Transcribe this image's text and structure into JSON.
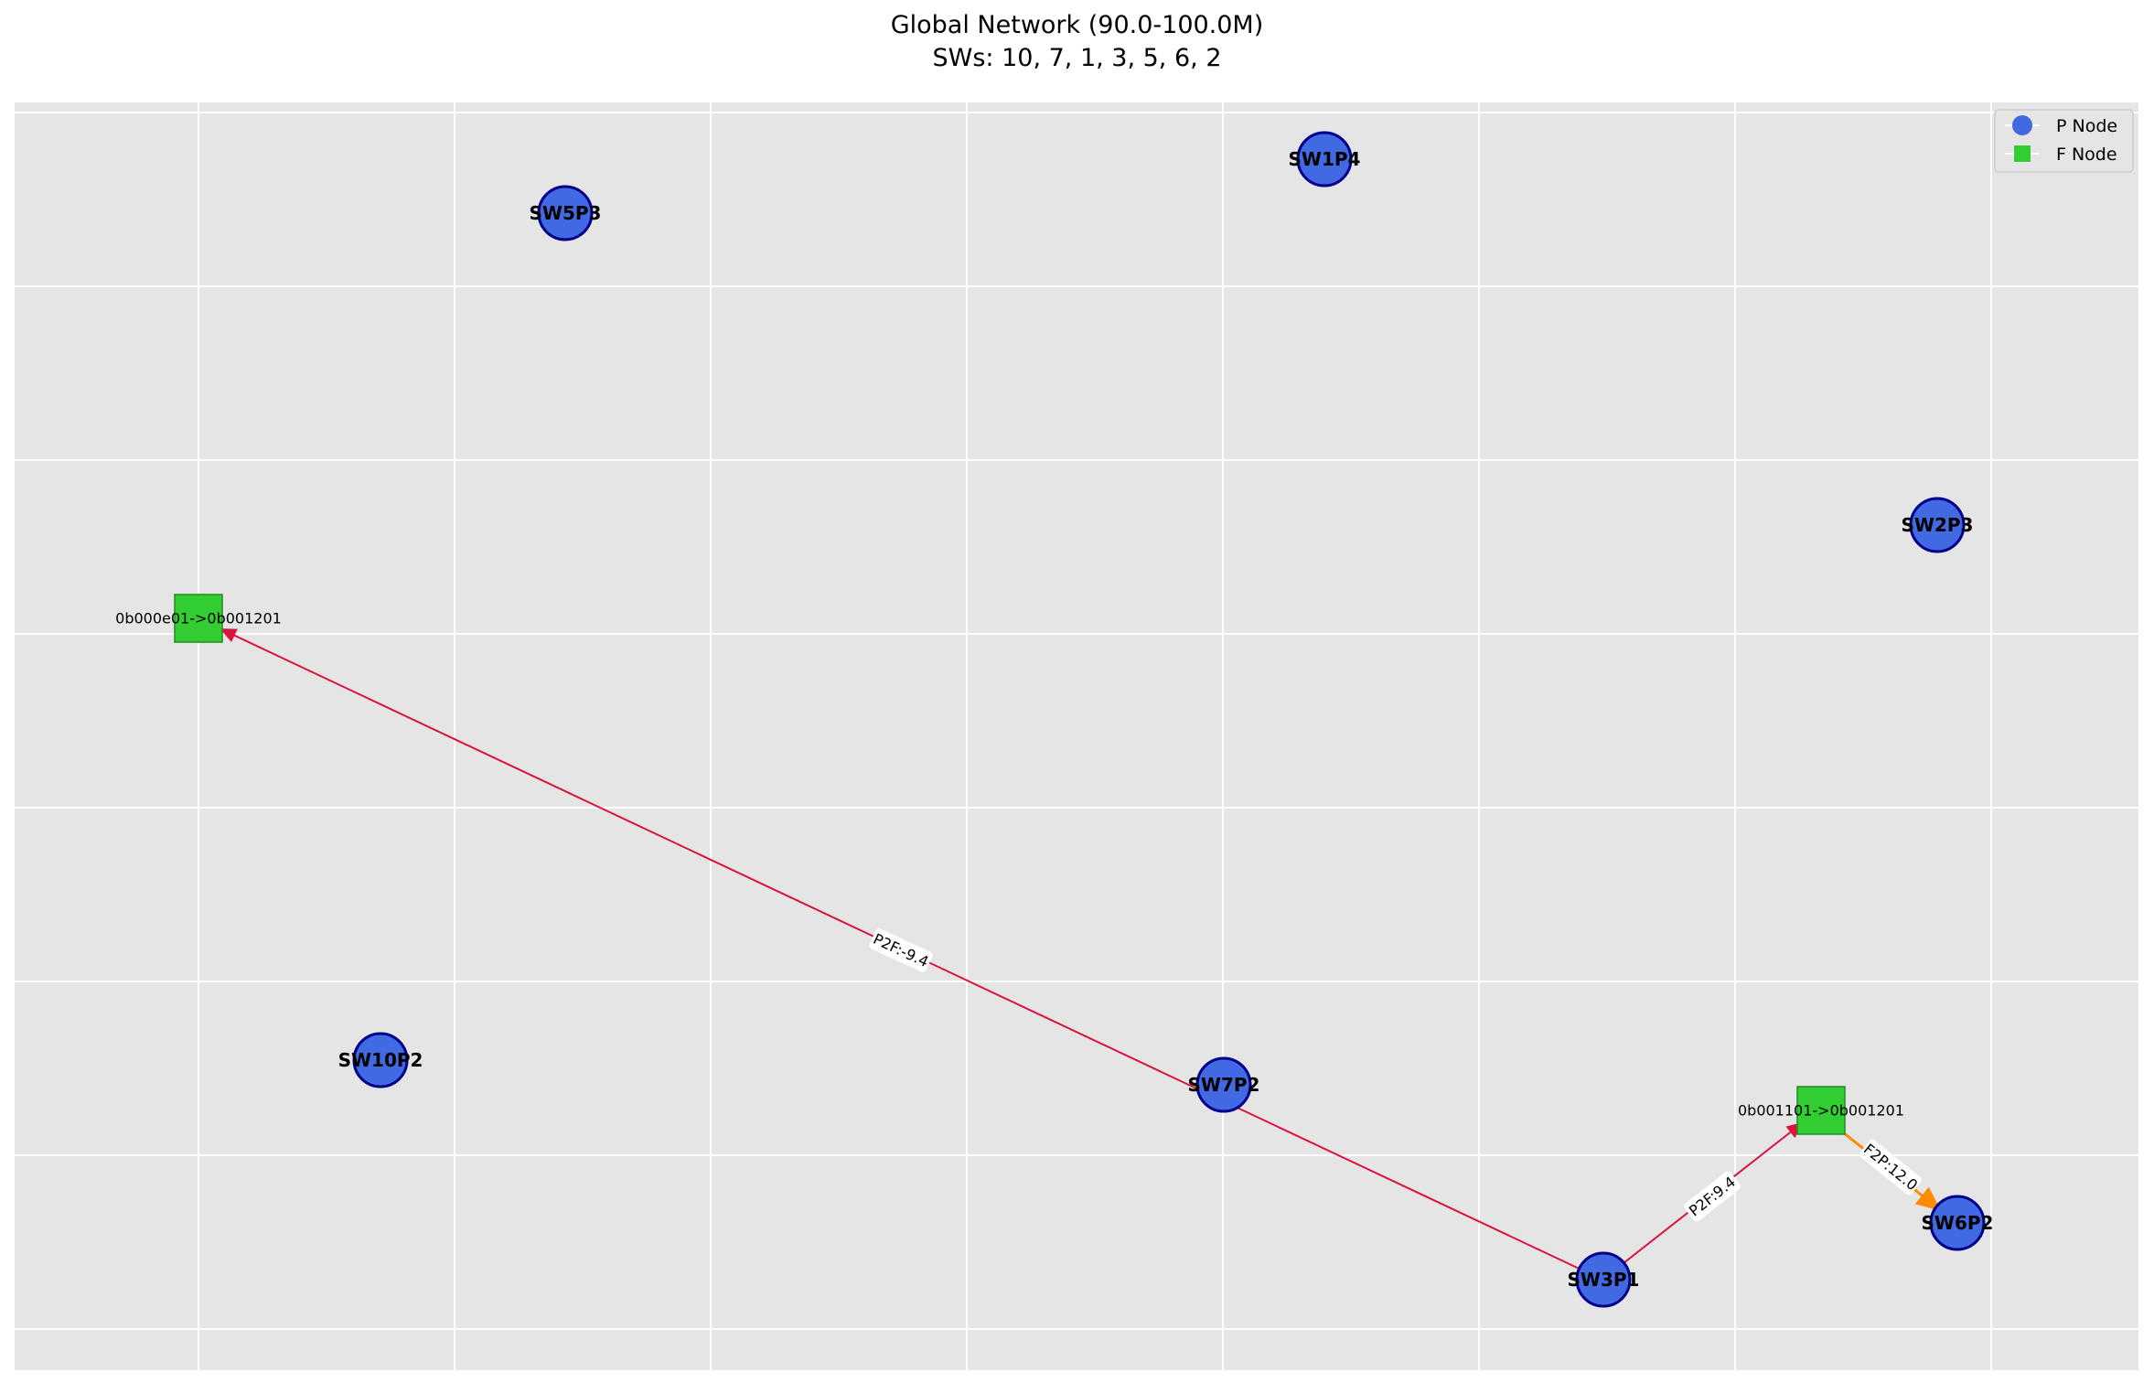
{
  "title": {
    "line1": "Global Network (90.0-100.0M)",
    "line2": "SWs: 10, 7, 1, 3, 5, 6, 2"
  },
  "legend": {
    "items": [
      {
        "label": "P Node",
        "shape": "circle",
        "color": "#4169e1"
      },
      {
        "label": "F Node",
        "shape": "square",
        "color": "#32cd32"
      }
    ]
  },
  "colors": {
    "background": "#e5e5e5",
    "grid": "#ffffff",
    "p_node_fill": "#4169e1",
    "p_node_stroke": "#00008b",
    "f_node_fill": "#32cd32",
    "f_node_stroke": "#228b22",
    "p2f_edge": "#dc143c",
    "f2p_edge": "#ff8c00"
  },
  "nodes": {
    "sw5p3": {
      "label": "SW5P3",
      "type": "P"
    },
    "sw1p4": {
      "label": "SW1P4",
      "type": "P"
    },
    "sw2p3": {
      "label": "SW2P3",
      "type": "P"
    },
    "sw10p2": {
      "label": "SW10P2",
      "type": "P"
    },
    "sw7p2": {
      "label": "SW7P2",
      "type": "P"
    },
    "sw3p1": {
      "label": "SW3P1",
      "type": "P"
    },
    "sw6p2": {
      "label": "SW6P2",
      "type": "P"
    },
    "f1": {
      "label": "0b000e01->0b001201",
      "type": "F"
    },
    "f2": {
      "label": "0b001101->0b001201",
      "type": "F"
    }
  },
  "edges": [
    {
      "from": "SW3P1",
      "to": "0b000e01->0b001201",
      "label": "P2F:-9.4",
      "kind": "P2F"
    },
    {
      "from": "SW3P1",
      "to": "0b001101->0b001201",
      "label": "P2F:9.4",
      "kind": "P2F"
    },
    {
      "from": "0b001101->0b001201",
      "to": "SW6P2",
      "label": "F2P:12.0",
      "kind": "F2P"
    }
  ]
}
